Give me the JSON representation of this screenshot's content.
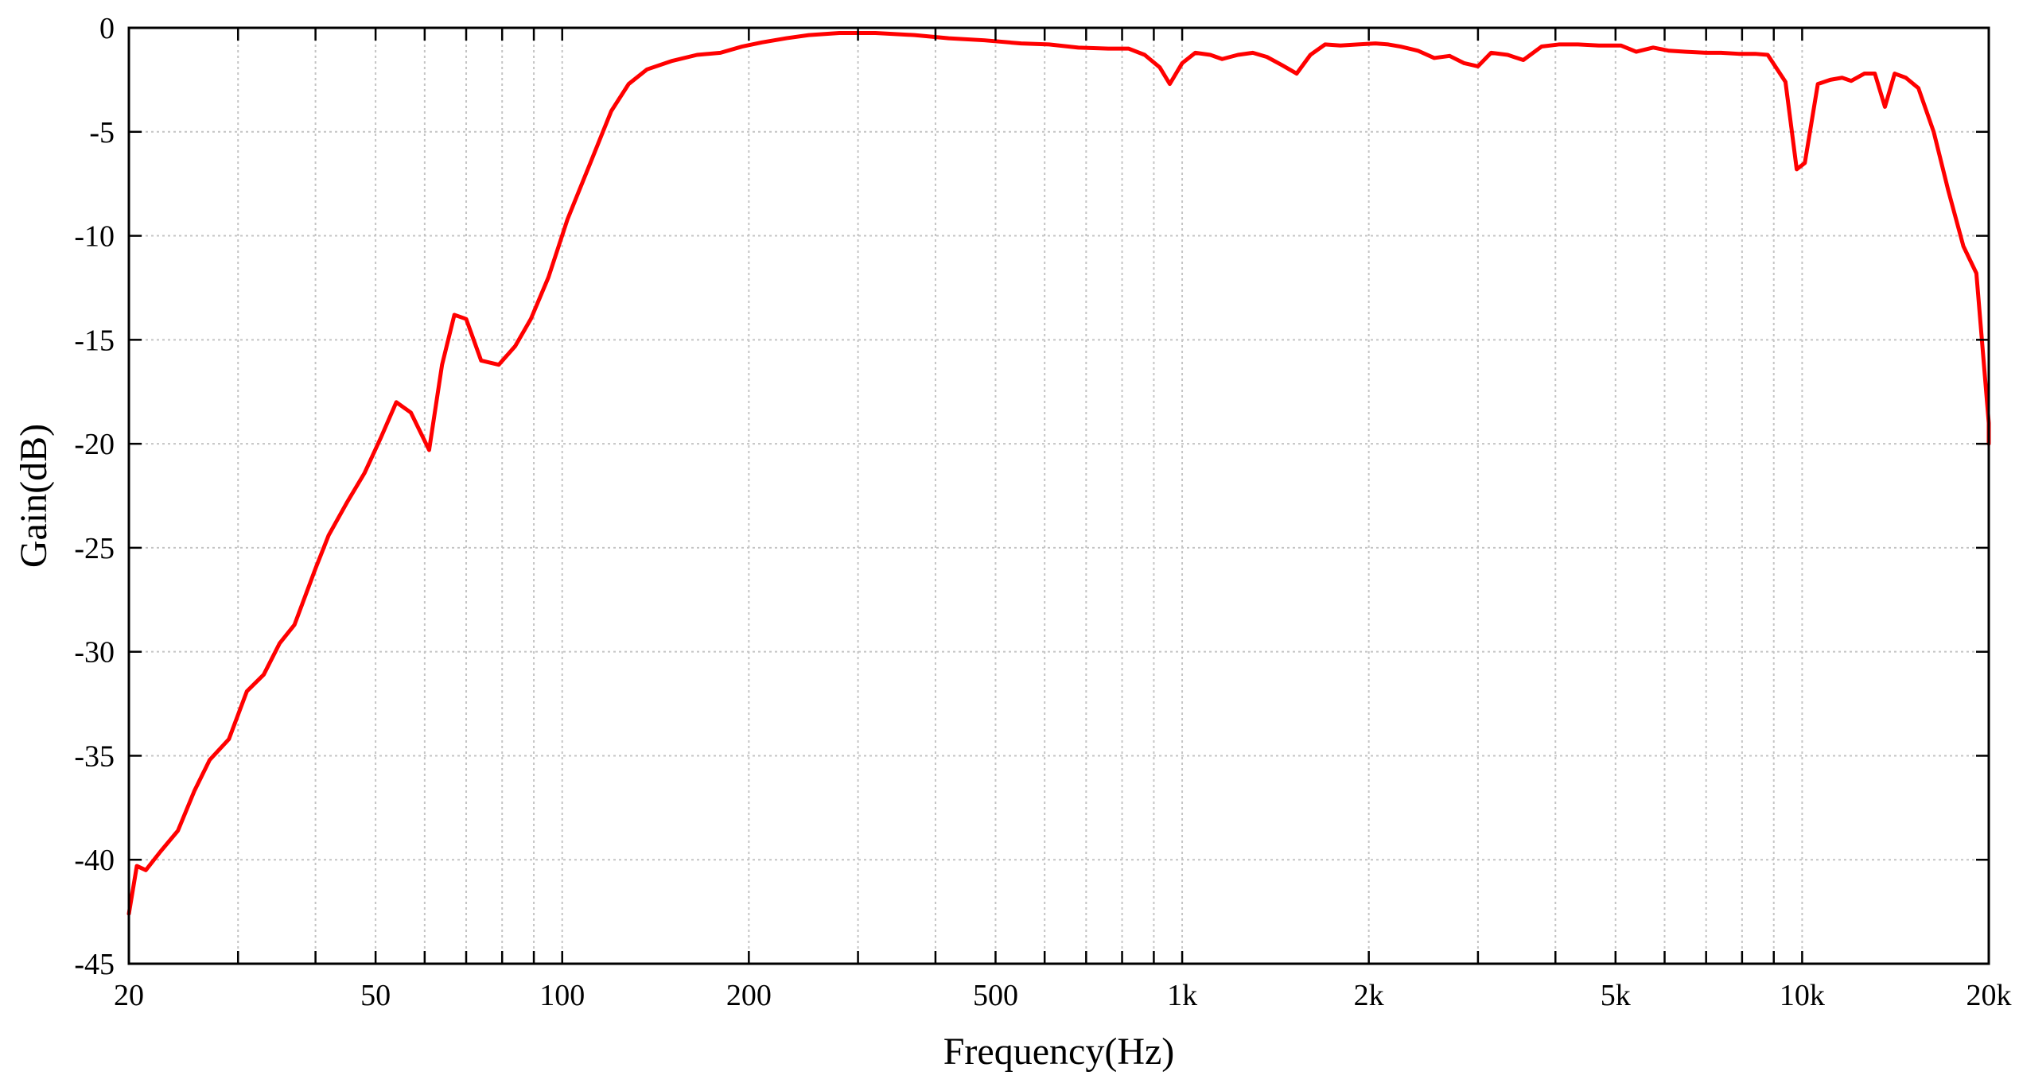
{
  "chart_data": {
    "type": "line",
    "title": "",
    "xlabel": "Frequency(Hz)",
    "ylabel": "Gain(dB)",
    "x_scale": "log",
    "xlim": [
      20,
      20000
    ],
    "ylim": [
      -45,
      0
    ],
    "grid": true,
    "x_ticks": [
      {
        "value": 20,
        "label": "20"
      },
      {
        "value": 50,
        "label": "50"
      },
      {
        "value": 100,
        "label": "100"
      },
      {
        "value": 200,
        "label": "200"
      },
      {
        "value": 500,
        "label": "500"
      },
      {
        "value": 1000,
        "label": "1k"
      },
      {
        "value": 2000,
        "label": "2k"
      },
      {
        "value": 5000,
        "label": "5k"
      },
      {
        "value": 10000,
        "label": "10k"
      },
      {
        "value": 20000,
        "label": "20k"
      }
    ],
    "y_ticks": [
      {
        "value": 0,
        "label": "0"
      },
      {
        "value": -5,
        "label": "-5"
      },
      {
        "value": -10,
        "label": "-10"
      },
      {
        "value": -15,
        "label": "-15"
      },
      {
        "value": -20,
        "label": "-20"
      },
      {
        "value": -25,
        "label": "-25"
      },
      {
        "value": -30,
        "label": "-30"
      },
      {
        "value": -35,
        "label": "-35"
      },
      {
        "value": -40,
        "label": "-40"
      },
      {
        "value": -45,
        "label": "-45"
      }
    ],
    "series": [
      {
        "color": "#ff0000",
        "points": [
          [
            20,
            -42.6
          ],
          [
            20.6,
            -40.3
          ],
          [
            21.3,
            -40.5
          ],
          [
            22.5,
            -39.6
          ],
          [
            24,
            -38.6
          ],
          [
            25.5,
            -36.7
          ],
          [
            27,
            -35.2
          ],
          [
            29,
            -34.2
          ],
          [
            31,
            -31.9
          ],
          [
            33,
            -31.1
          ],
          [
            35,
            -29.6
          ],
          [
            37,
            -28.7
          ],
          [
            40,
            -26.0
          ],
          [
            42,
            -24.4
          ],
          [
            45,
            -22.8
          ],
          [
            48,
            -21.4
          ],
          [
            51,
            -19.7
          ],
          [
            54,
            -18.0
          ],
          [
            57,
            -18.5
          ],
          [
            61,
            -20.3
          ],
          [
            64,
            -16.2
          ],
          [
            67,
            -13.8
          ],
          [
            70,
            -14.0
          ],
          [
            74,
            -16.0
          ],
          [
            79,
            -16.2
          ],
          [
            84,
            -15.3
          ],
          [
            89,
            -14.0
          ],
          [
            95,
            -12.0
          ],
          [
            102,
            -9.2
          ],
          [
            111,
            -6.5
          ],
          [
            120,
            -4.0
          ],
          [
            128,
            -2.7
          ],
          [
            137,
            -2.0
          ],
          [
            150,
            -1.6
          ],
          [
            165,
            -1.3
          ],
          [
            180,
            -1.2
          ],
          [
            195,
            -0.9
          ],
          [
            210,
            -0.7
          ],
          [
            230,
            -0.5
          ],
          [
            250,
            -0.35
          ],
          [
            280,
            -0.25
          ],
          [
            320,
            -0.25
          ],
          [
            370,
            -0.35
          ],
          [
            420,
            -0.5
          ],
          [
            480,
            -0.6
          ],
          [
            550,
            -0.75
          ],
          [
            610,
            -0.8
          ],
          [
            680,
            -0.95
          ],
          [
            760,
            -1.0
          ],
          [
            820,
            -1.0
          ],
          [
            870,
            -1.3
          ],
          [
            920,
            -1.9
          ],
          [
            955,
            -2.7
          ],
          [
            1000,
            -1.7
          ],
          [
            1050,
            -1.2
          ],
          [
            1110,
            -1.3
          ],
          [
            1160,
            -1.5
          ],
          [
            1230,
            -1.3
          ],
          [
            1300,
            -1.2
          ],
          [
            1370,
            -1.4
          ],
          [
            1450,
            -1.8
          ],
          [
            1530,
            -2.2
          ],
          [
            1610,
            -1.3
          ],
          [
            1700,
            -0.8
          ],
          [
            1800,
            -0.85
          ],
          [
            1920,
            -0.8
          ],
          [
            2050,
            -0.75
          ],
          [
            2150,
            -0.8
          ],
          [
            2250,
            -0.9
          ],
          [
            2400,
            -1.1
          ],
          [
            2550,
            -1.45
          ],
          [
            2700,
            -1.35
          ],
          [
            2850,
            -1.7
          ],
          [
            3000,
            -1.85
          ],
          [
            3150,
            -1.2
          ],
          [
            3350,
            -1.3
          ],
          [
            3550,
            -1.55
          ],
          [
            3800,
            -0.9
          ],
          [
            4050,
            -0.8
          ],
          [
            4350,
            -0.8
          ],
          [
            4700,
            -0.85
          ],
          [
            5100,
            -0.85
          ],
          [
            5400,
            -1.15
          ],
          [
            5750,
            -0.95
          ],
          [
            6100,
            -1.1
          ],
          [
            6500,
            -1.15
          ],
          [
            7000,
            -1.2
          ],
          [
            7400,
            -1.2
          ],
          [
            7900,
            -1.25
          ],
          [
            8400,
            -1.25
          ],
          [
            8800,
            -1.3
          ],
          [
            9400,
            -2.6
          ],
          [
            9800,
            -6.8
          ],
          [
            10100,
            -6.5
          ],
          [
            10600,
            -2.7
          ],
          [
            11100,
            -2.5
          ],
          [
            11600,
            -2.4
          ],
          [
            12000,
            -2.55
          ],
          [
            12600,
            -2.2
          ],
          [
            13100,
            -2.2
          ],
          [
            13600,
            -3.8
          ],
          [
            14100,
            -2.2
          ],
          [
            14700,
            -2.4
          ],
          [
            15400,
            -2.9
          ],
          [
            16300,
            -5.0
          ],
          [
            17200,
            -7.8
          ],
          [
            18200,
            -10.5
          ],
          [
            19100,
            -11.8
          ],
          [
            20000,
            -19.0
          ],
          [
            20000,
            -20.0
          ]
        ]
      }
    ]
  }
}
